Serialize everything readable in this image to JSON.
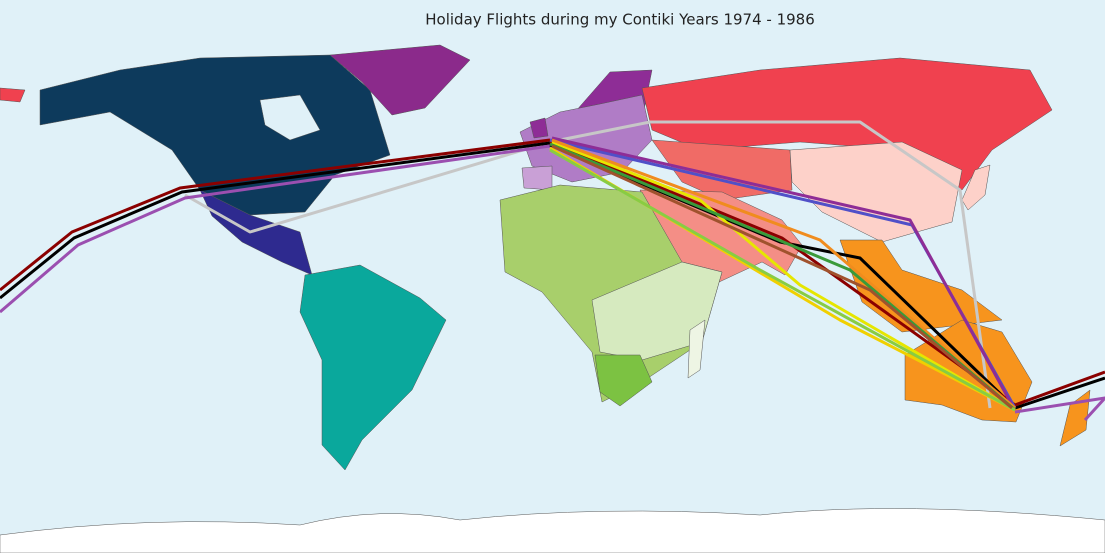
{
  "title": "Holiday Flights during my Contiki Years 1974 - 1986"
}
